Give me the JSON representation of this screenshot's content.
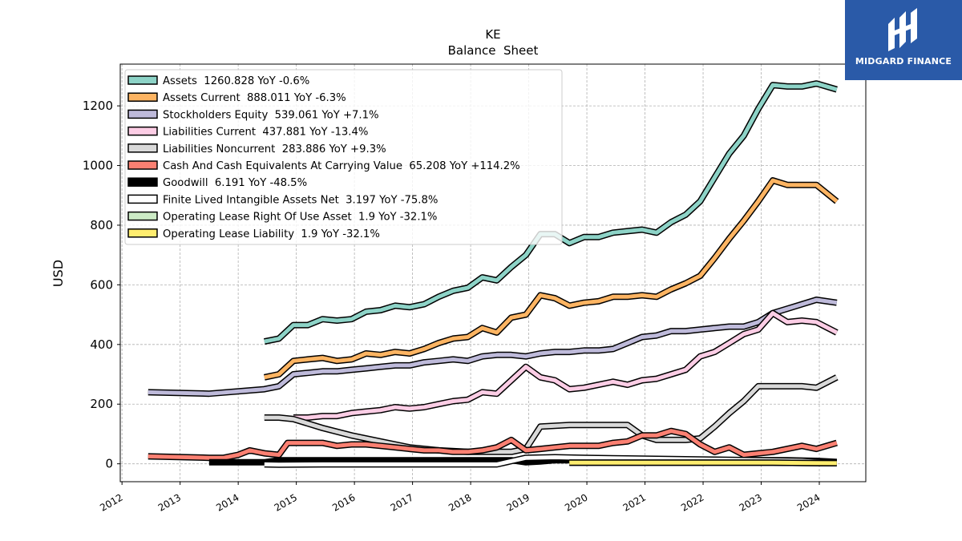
{
  "brand": {
    "name": "MIDGARD FINANCE"
  },
  "chart_data": {
    "type": "line",
    "title": "KE",
    "subtitle": "Balance  Sheet",
    "ylabel": "USD",
    "xlabel": "",
    "xlim": [
      2011.97,
      2024.8
    ],
    "ylim": [
      -60,
      1340
    ],
    "xticks": [
      2012,
      2013,
      2014,
      2015,
      2016,
      2017,
      2018,
      2019,
      2020,
      2021,
      2022,
      2023,
      2024
    ],
    "yticks": [
      0,
      200,
      400,
      600,
      800,
      1000,
      1200
    ],
    "grid": true,
    "legend_position": "top-left",
    "series": [
      {
        "name": "Assets  1260.828 YoY -0.6%",
        "color": "#8dd3c7",
        "x": [
          2014.45,
          2014.7,
          2014.95,
          2015.2,
          2015.45,
          2015.7,
          2015.95,
          2016.2,
          2016.45,
          2016.7,
          2016.95,
          2017.2,
          2017.45,
          2017.7,
          2017.95,
          2018.2,
          2018.45,
          2018.7,
          2018.95,
          2019.2,
          2019.45,
          2019.7,
          2019.95,
          2020.2,
          2020.45,
          2020.7,
          2020.95,
          2021.2,
          2021.45,
          2021.7,
          2021.95,
          2022.2,
          2022.45,
          2022.7,
          2022.95,
          2023.2,
          2023.45,
          2023.7,
          2023.95,
          2024.3
        ],
        "y": [
          410,
          420,
          465,
          465,
          485,
          480,
          485,
          510,
          515,
          530,
          525,
          535,
          560,
          580,
          590,
          625,
          615,
          660,
          700,
          770,
          770,
          740,
          760,
          760,
          775,
          780,
          785,
          775,
          810,
          835,
          880,
          960,
          1040,
          1100,
          1190,
          1270,
          1265,
          1265,
          1275,
          1255
        ]
      },
      {
        "name": "Assets Current  888.011 YoY -6.3%",
        "color": "#fdb462",
        "x": [
          2014.45,
          2014.7,
          2014.95,
          2015.2,
          2015.45,
          2015.7,
          2015.95,
          2016.2,
          2016.45,
          2016.7,
          2016.95,
          2017.2,
          2017.45,
          2017.7,
          2017.95,
          2018.2,
          2018.45,
          2018.7,
          2018.95,
          2019.2,
          2019.45,
          2019.7,
          2019.95,
          2020.2,
          2020.45,
          2020.7,
          2020.95,
          2021.2,
          2021.45,
          2021.7,
          2021.95,
          2022.2,
          2022.45,
          2022.7,
          2022.95,
          2023.2,
          2023.45,
          2023.7,
          2023.95,
          2024.3
        ],
        "y": [
          290,
          300,
          345,
          350,
          355,
          345,
          350,
          370,
          365,
          375,
          370,
          385,
          405,
          420,
          425,
          455,
          440,
          490,
          500,
          565,
          555,
          530,
          540,
          545,
          560,
          560,
          565,
          560,
          585,
          605,
          630,
          690,
          755,
          815,
          880,
          950,
          935,
          935,
          935,
          880
        ]
      },
      {
        "name": "Stockholders Equity  539.061 YoY +7.1%",
        "color": "#bebada",
        "x": [
          2012.45,
          2013.5,
          2014.45,
          2014.7,
          2014.95,
          2015.2,
          2015.45,
          2015.7,
          2015.95,
          2016.2,
          2016.45,
          2016.7,
          2016.95,
          2017.2,
          2017.45,
          2017.7,
          2017.95,
          2018.2,
          2018.45,
          2018.7,
          2018.95,
          2019.2,
          2019.45,
          2019.7,
          2019.95,
          2020.2,
          2020.45,
          2020.7,
          2020.95,
          2021.2,
          2021.45,
          2021.7,
          2021.95,
          2022.2,
          2022.45,
          2022.7,
          2022.95,
          2023.2,
          2023.45,
          2023.7,
          2023.95,
          2024.3
        ],
        "y": [
          240,
          235,
          250,
          260,
          300,
          305,
          310,
          310,
          315,
          320,
          325,
          330,
          330,
          340,
          345,
          350,
          345,
          360,
          365,
          365,
          360,
          370,
          375,
          375,
          380,
          380,
          385,
          405,
          425,
          430,
          445,
          445,
          450,
          455,
          460,
          460,
          475,
          505,
          520,
          535,
          550,
          540
        ]
      },
      {
        "name": "Liabilities Current  437.881 YoY -13.4%",
        "color": "#fccde5",
        "x": [
          2014.95,
          2015.2,
          2015.45,
          2015.7,
          2015.95,
          2016.2,
          2016.45,
          2016.7,
          2016.95,
          2017.2,
          2017.45,
          2017.7,
          2017.95,
          2018.2,
          2018.45,
          2018.7,
          2018.95,
          2019.2,
          2019.45,
          2019.7,
          2019.95,
          2020.2,
          2020.45,
          2020.7,
          2020.95,
          2021.2,
          2021.45,
          2021.7,
          2021.95,
          2022.2,
          2022.45,
          2022.7,
          2022.95,
          2023.2,
          2023.45,
          2023.7,
          2023.95,
          2024.3
        ],
        "y": [
          155,
          155,
          160,
          160,
          170,
          175,
          180,
          190,
          185,
          190,
          200,
          210,
          215,
          240,
          235,
          280,
          325,
          290,
          280,
          250,
          255,
          265,
          275,
          265,
          280,
          285,
          300,
          315,
          360,
          375,
          405,
          435,
          450,
          505,
          475,
          480,
          475,
          440
        ]
      },
      {
        "name": "Liabilities Noncurrent  283.886 YoY +9.3%",
        "color": "#d9d9d9",
        "x": [
          2014.45,
          2014.7,
          2014.95,
          2015.45,
          2015.95,
          2016.45,
          2016.95,
          2017.45,
          2017.95,
          2018.45,
          2018.7,
          2018.95,
          2019.2,
          2019.7,
          2020.2,
          2020.7,
          2020.95,
          2021.2,
          2021.7,
          2021.95,
          2022.2,
          2022.45,
          2022.7,
          2022.95,
          2023.2,
          2023.7,
          2023.95,
          2024.3
        ],
        "y": [
          155,
          155,
          150,
          120,
          95,
          75,
          55,
          45,
          40,
          40,
          40,
          50,
          125,
          130,
          130,
          130,
          95,
          80,
          80,
          85,
          125,
          170,
          210,
          260,
          260,
          260,
          255,
          290
        ]
      },
      {
        "name": "Cash And Cash Equivalents At Carrying Value  65.208 YoY +114.2%",
        "color": "#fb8072",
        "x": [
          2012.45,
          2013.5,
          2013.75,
          2014.0,
          2014.2,
          2014.45,
          2014.7,
          2014.85,
          2015.0,
          2015.2,
          2015.45,
          2015.7,
          2015.95,
          2016.2,
          2016.45,
          2016.7,
          2016.95,
          2017.2,
          2017.45,
          2017.7,
          2017.95,
          2018.2,
          2018.45,
          2018.7,
          2018.95,
          2019.2,
          2019.45,
          2019.7,
          2019.95,
          2020.2,
          2020.45,
          2020.7,
          2020.95,
          2021.2,
          2021.45,
          2021.7,
          2021.95,
          2022.2,
          2022.45,
          2022.7,
          2022.95,
          2023.2,
          2023.45,
          2023.7,
          2023.95,
          2024.3
        ],
        "y": [
          25,
          20,
          20,
          30,
          45,
          35,
          30,
          70,
          70,
          70,
          70,
          60,
          65,
          65,
          60,
          55,
          50,
          45,
          45,
          40,
          40,
          45,
          55,
          80,
          45,
          50,
          55,
          60,
          60,
          60,
          70,
          75,
          95,
          95,
          110,
          100,
          65,
          40,
          55,
          30,
          35,
          40,
          50,
          60,
          50,
          70
        ]
      },
      {
        "name": "Goodwill  6.191 YoY -48.5%",
        "color": "#000000",
        "x": [
          2013.5,
          2014.45,
          2014.7,
          2018.7,
          2018.95,
          2019.2,
          2019.45,
          2019.7,
          2020.45,
          2021.2,
          2021.95,
          2022.7,
          2023.45,
          2023.95,
          2024.3
        ],
        "y": [
          5,
          5,
          12,
          12,
          5,
          8,
          12,
          12,
          12,
          12,
          12,
          12,
          12,
          10,
          6
        ]
      },
      {
        "name": "Finite Lived Intangible Assets Net  3.197 YoY -75.8%",
        "color": "#ffffff",
        "x": [
          2014.45,
          2014.7,
          2015.45,
          2016.45,
          2017.45,
          2018.45,
          2018.95,
          2019.45,
          2019.95,
          2020.7,
          2021.45,
          2022.2,
          2022.95,
          2023.7,
          2024.3
        ],
        "y": [
          -2,
          -3,
          -2,
          -2,
          -2,
          -2,
          20,
          22,
          20,
          18,
          16,
          14,
          12,
          10,
          3
        ]
      },
      {
        "name": "Operating Lease Right Of Use Asset  1.9 YoY -32.1%",
        "color": "#ccebc5",
        "x": [
          2019.7,
          2020.2,
          2020.7,
          2021.2,
          2021.7,
          2022.2,
          2022.7,
          2023.2,
          2023.7,
          2024.3
        ],
        "y": [
          4,
          4,
          4,
          4,
          4,
          4,
          4,
          4,
          3,
          2
        ]
      },
      {
        "name": "Operating Lease Liability  1.9 YoY -32.1%",
        "color": "#ffed6f",
        "x": [
          2019.7,
          2020.2,
          2020.7,
          2021.2,
          2021.7,
          2022.2,
          2022.7,
          2023.2,
          2023.7,
          2024.3
        ],
        "y": [
          4,
          4,
          4,
          4,
          4,
          4,
          4,
          4,
          3,
          2
        ]
      }
    ]
  }
}
